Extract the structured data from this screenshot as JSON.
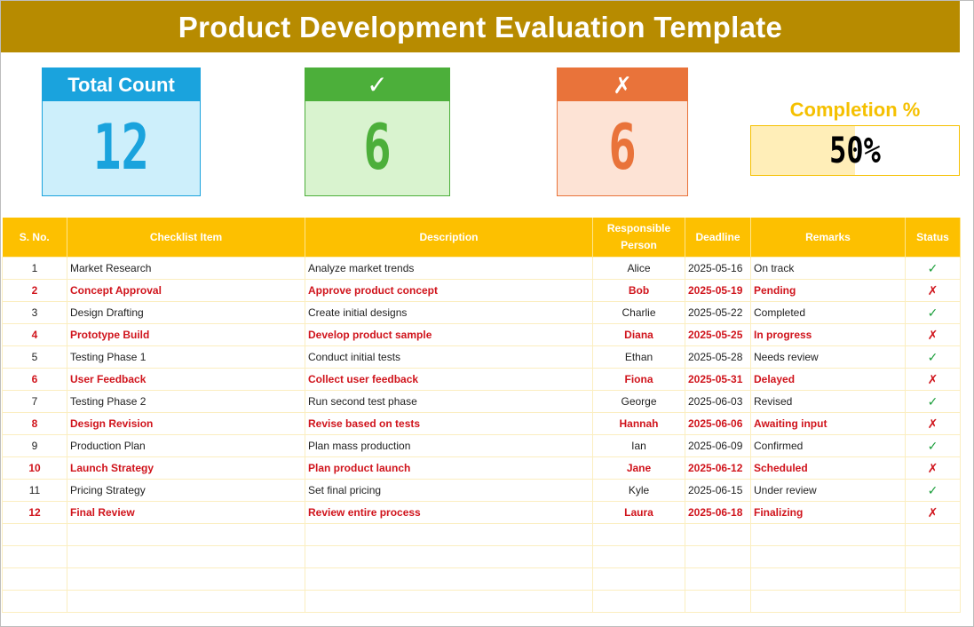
{
  "title": "Product Development Evaluation Template",
  "cards": {
    "total": {
      "label": "Total Count",
      "value": "12"
    },
    "done": {
      "label": "✓",
      "value": "6"
    },
    "pending": {
      "label": "✗",
      "value": "6"
    }
  },
  "completion": {
    "label": "Completion %",
    "value_text": "50%",
    "fraction": 0.5
  },
  "colors": {
    "accent": "#b78b00",
    "header": "#fdc000",
    "done": "#4caf3a",
    "pending": "#e9733a",
    "total": "#1aa3dd",
    "alert_text": "#d0141c"
  },
  "table": {
    "headers": [
      "S. No.",
      "Checklist Item",
      "Description",
      "Responsible Person",
      "Deadline",
      "Remarks",
      "Status"
    ],
    "rows": [
      {
        "no": "1",
        "item": "Market Research",
        "desc": "Analyze market trends",
        "person": "Alice",
        "deadline": "2025-05-16",
        "remarks": "On track",
        "status": "✓"
      },
      {
        "no": "2",
        "item": "Concept Approval",
        "desc": "Approve product concept",
        "person": "Bob",
        "deadline": "2025-05-19",
        "remarks": "Pending",
        "status": "✗"
      },
      {
        "no": "3",
        "item": "Design Drafting",
        "desc": "Create initial designs",
        "person": "Charlie",
        "deadline": "2025-05-22",
        "remarks": "Completed",
        "status": "✓"
      },
      {
        "no": "4",
        "item": "Prototype Build",
        "desc": "Develop product sample",
        "person": "Diana",
        "deadline": "2025-05-25",
        "remarks": "In progress",
        "status": "✗"
      },
      {
        "no": "5",
        "item": "Testing Phase 1",
        "desc": "Conduct initial tests",
        "person": "Ethan",
        "deadline": "2025-05-28",
        "remarks": "Needs review",
        "status": "✓"
      },
      {
        "no": "6",
        "item": "User Feedback",
        "desc": "Collect user feedback",
        "person": "Fiona",
        "deadline": "2025-05-31",
        "remarks": "Delayed",
        "status": "✗"
      },
      {
        "no": "7",
        "item": "Testing Phase 2",
        "desc": "Run second test phase",
        "person": "George",
        "deadline": "2025-06-03",
        "remarks": "Revised",
        "status": "✓"
      },
      {
        "no": "8",
        "item": "Design Revision",
        "desc": "Revise based on tests",
        "person": "Hannah",
        "deadline": "2025-06-06",
        "remarks": "Awaiting input",
        "status": "✗"
      },
      {
        "no": "9",
        "item": "Production Plan",
        "desc": "Plan mass production",
        "person": "Ian",
        "deadline": "2025-06-09",
        "remarks": "Confirmed",
        "status": "✓"
      },
      {
        "no": "10",
        "item": "Launch Strategy",
        "desc": "Plan product launch",
        "person": "Jane",
        "deadline": "2025-06-12",
        "remarks": "Scheduled",
        "status": "✗"
      },
      {
        "no": "11",
        "item": "Pricing Strategy",
        "desc": "Set final pricing",
        "person": "Kyle",
        "deadline": "2025-06-15",
        "remarks": "Under review",
        "status": "✓"
      },
      {
        "no": "12",
        "item": "Final Review",
        "desc": "Review entire process",
        "person": "Laura",
        "deadline": "2025-06-18",
        "remarks": "Finalizing",
        "status": "✗"
      }
    ]
  }
}
